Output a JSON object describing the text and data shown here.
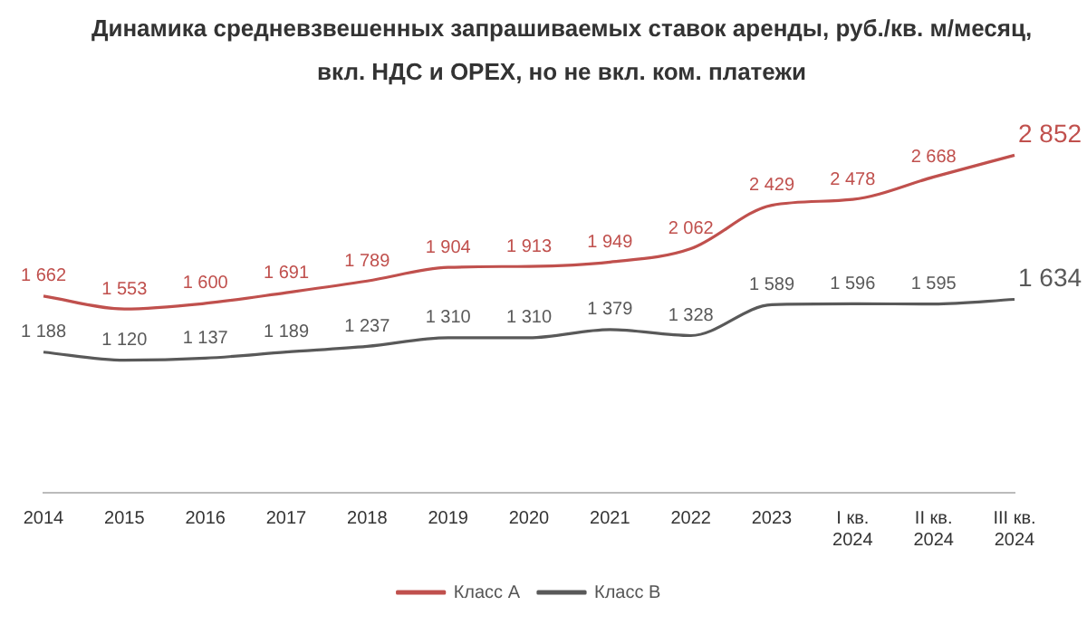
{
  "chart_data": {
    "type": "line",
    "title": "Динамика средневзвешенных запрашиваемых ставок аренды, руб./кв. м/месяц, вкл. НДС и OPEX, но не вкл. ком. платежи",
    "categories": [
      "2014",
      "2015",
      "2016",
      "2017",
      "2018",
      "2019",
      "2020",
      "2021",
      "2022",
      "2023",
      "I кв. 2024",
      "II кв. 2024",
      "III кв. 2024"
    ],
    "series": [
      {
        "name": "Класс А",
        "color": "#c0504d",
        "values": [
          1662,
          1553,
          1600,
          1691,
          1789,
          1904,
          1913,
          1949,
          2062,
          2429,
          2478,
          2668,
          2852
        ]
      },
      {
        "name": "Класс В",
        "color": "#595959",
        "values": [
          1188,
          1120,
          1137,
          1189,
          1237,
          1310,
          1310,
          1379,
          1328,
          1589,
          1596,
          1595,
          1634
        ]
      }
    ],
    "data_labels": true,
    "legend": "bottom",
    "grid": false
  }
}
